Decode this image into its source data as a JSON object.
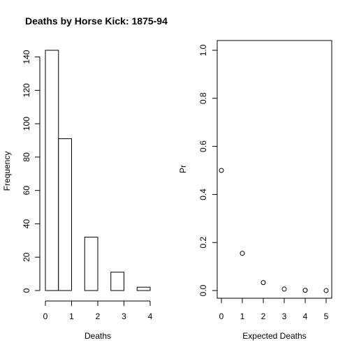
{
  "chart_data": [
    {
      "type": "bar",
      "title": "Deaths by Horse Kick: 1875-94",
      "xlabel": "Deaths",
      "ylabel": "Frequency",
      "bins": [
        {
          "from": 0.0,
          "to": 0.5,
          "value": 144
        },
        {
          "from": 0.5,
          "to": 1.0,
          "value": 91
        },
        {
          "from": 1.5,
          "to": 2.0,
          "value": 32
        },
        {
          "from": 2.5,
          "to": 3.0,
          "value": 11
        },
        {
          "from": 3.5,
          "to": 4.0,
          "value": 2
        }
      ],
      "xticks": [
        0,
        1,
        2,
        3,
        4
      ],
      "yticks": [
        0,
        20,
        40,
        60,
        80,
        100,
        120,
        140
      ],
      "xlim": [
        0,
        4
      ],
      "ylim": [
        0,
        144
      ],
      "grid": false,
      "box": false
    },
    {
      "type": "scatter",
      "title": "",
      "xlabel": "Expected Deaths",
      "ylabel": "Pr",
      "x": [
        0,
        1,
        2,
        3,
        4,
        5
      ],
      "y": [
        0.5,
        0.155,
        0.033,
        0.006,
        0.001,
        0.0
      ],
      "xticks": [
        0,
        1,
        2,
        3,
        4,
        5
      ],
      "yticks": [
        "0.0",
        "0.2",
        "0.4",
        "0.6",
        "0.8",
        "1.0"
      ],
      "xlim": [
        0,
        5
      ],
      "ylim": [
        0,
        1
      ],
      "grid": false,
      "box": true
    }
  ]
}
